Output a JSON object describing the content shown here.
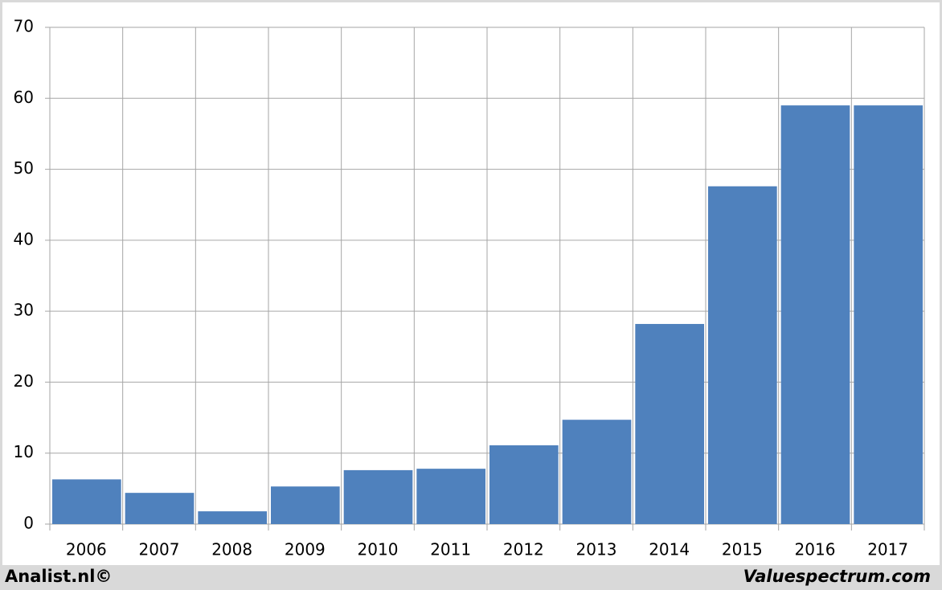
{
  "chart_data": {
    "type": "bar",
    "categories": [
      "2006",
      "2007",
      "2008",
      "2009",
      "2010",
      "2011",
      "2012",
      "2013",
      "2014",
      "2015",
      "2016",
      "2017"
    ],
    "values": [
      6.3,
      4.4,
      1.8,
      5.3,
      7.6,
      7.8,
      11.1,
      14.7,
      28.2,
      47.6,
      59.0,
      59.0
    ],
    "color": "#4f81bd",
    "ylim": [
      0,
      70
    ],
    "yticks": [
      0,
      10,
      20,
      30,
      40,
      50,
      60,
      70
    ],
    "grid": true
  },
  "footer": {
    "left": "Analist.nl©",
    "right": "Valuespectrum.com"
  }
}
